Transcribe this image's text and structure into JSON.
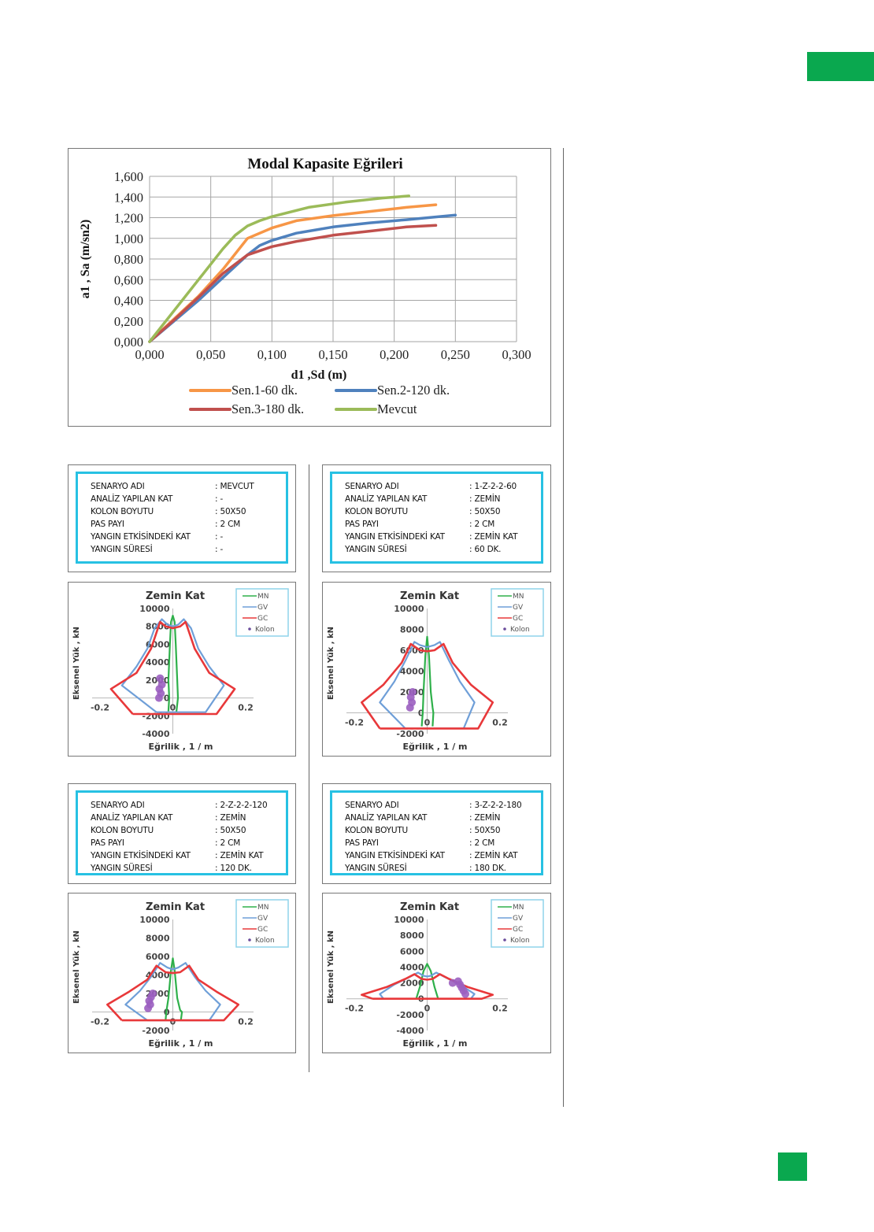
{
  "page": {
    "accent_color": "#0aa84f"
  },
  "chart_data": [
    {
      "type": "line",
      "title": "Modal Kapasite Eğrileri",
      "xlabel": "d1 ,Sd  (m)",
      "ylabel": "a1 , Sa (m/sn2)",
      "xlim": [
        0,
        0.3
      ],
      "ylim": [
        0,
        1.6
      ],
      "xticks": [
        "0,000",
        "0,050",
        "0,100",
        "0,150",
        "0,200",
        "0,250",
        "0,300"
      ],
      "yticks": [
        "0,000",
        "0,200",
        "0,400",
        "0,600",
        "0,800",
        "1,000",
        "1,200",
        "1,400",
        "1,600"
      ],
      "grid": true,
      "legend_position": "bottom",
      "series": [
        {
          "name": "Sen.1-60 dk.",
          "color": "#f79646",
          "x": [
            0,
            0.02,
            0.04,
            0.06,
            0.08,
            0.1,
            0.12,
            0.15,
            0.18,
            0.21,
            0.234
          ],
          "y": [
            0,
            0.22,
            0.44,
            0.7,
            1.0,
            1.1,
            1.17,
            1.22,
            1.26,
            1.3,
            1.325
          ]
        },
        {
          "name": "Sen.2-120 dk.",
          "color": "#4f81bd",
          "x": [
            0,
            0.02,
            0.04,
            0.06,
            0.08,
            0.09,
            0.1,
            0.12,
            0.15,
            0.18,
            0.21,
            0.25
          ],
          "y": [
            0,
            0.2,
            0.4,
            0.62,
            0.84,
            0.93,
            0.98,
            1.05,
            1.11,
            1.15,
            1.18,
            1.225
          ]
        },
        {
          "name": "Sen.3-180 dk.",
          "color": "#c0504d",
          "x": [
            0,
            0.02,
            0.04,
            0.06,
            0.08,
            0.1,
            0.12,
            0.15,
            0.18,
            0.21,
            0.234
          ],
          "y": [
            0,
            0.21,
            0.43,
            0.66,
            0.84,
            0.92,
            0.97,
            1.03,
            1.07,
            1.11,
            1.125
          ]
        },
        {
          "name": "Mevcut",
          "color": "#9bbb59",
          "x": [
            0,
            0.02,
            0.04,
            0.06,
            0.07,
            0.08,
            0.09,
            0.1,
            0.13,
            0.16,
            0.19,
            0.212
          ],
          "y": [
            0,
            0.3,
            0.6,
            0.9,
            1.03,
            1.12,
            1.17,
            1.21,
            1.3,
            1.35,
            1.39,
            1.41
          ]
        }
      ]
    },
    {
      "type": "line",
      "id": "mn-mevcut",
      "title": "Zemin Kat",
      "xlabel": "Eğrilik , 1 / m",
      "ylabel": "Eksenel Yük , kN",
      "xlim": [
        -0.2,
        0.2
      ],
      "ylim": [
        -4000,
        10000
      ],
      "xticks": [
        "-0.2",
        "0",
        "0.2"
      ],
      "yticks": [
        "-4000",
        "-2000",
        "0",
        "2000",
        "4000",
        "6000",
        "8000",
        "10000"
      ],
      "legend": [
        "MN",
        "GV",
        "GC",
        "Kolon"
      ],
      "legend_position": "top-right",
      "series": [
        {
          "name": "MN",
          "color": "#2eb04a",
          "x": [
            -0.012,
            -0.01,
            -0.012,
            -0.008,
            -0.005,
            0,
            0.005,
            0.008,
            0.012,
            0.014,
            0.01,
            0.012
          ],
          "y": [
            -1500,
            0,
            2000,
            6000,
            8500,
            9200,
            8500,
            6000,
            2000,
            0,
            -1500,
            -1500
          ]
        },
        {
          "name": "GV",
          "color": "#6f9fd8",
          "x": [
            -0.045,
            -0.14,
            -0.1,
            -0.07,
            -0.05,
            -0.03,
            -0.015,
            0,
            0.015,
            0.03,
            0.05,
            0.07,
            0.1,
            0.14,
            0.09,
            -0.045
          ],
          "y": [
            -1600,
            1400,
            3500,
            5500,
            7800,
            8800,
            8200,
            8000,
            8200,
            8800,
            7800,
            5500,
            3500,
            1400,
            -1600,
            -1600
          ]
        },
        {
          "name": "GC",
          "color": "#e8383a",
          "x": [
            -0.11,
            -0.17,
            -0.1,
            -0.06,
            -0.035,
            -0.02,
            0,
            0.02,
            0.035,
            0.06,
            0.1,
            0.17,
            0.12,
            -0.11
          ],
          "y": [
            -1800,
            1000,
            2800,
            5500,
            8500,
            8000,
            7800,
            8000,
            8500,
            5500,
            2800,
            1000,
            -1800,
            -1800
          ]
        }
      ],
      "kolon_points": {
        "x": [
          -0.035,
          -0.03,
          -0.037,
          -0.033,
          -0.038
        ],
        "y": [
          2200,
          1500,
          1000,
          500,
          0
        ]
      }
    },
    {
      "type": "line",
      "id": "mn-60",
      "title": "Zemin Kat",
      "xlabel": "Eğrilik , 1 / m",
      "ylabel": "Eksenel Yük , kN",
      "xlim": [
        -0.2,
        0.2
      ],
      "ylim": [
        -2000,
        10000
      ],
      "xticks": [
        "-0.2",
        "0",
        "0.2"
      ],
      "yticks": [
        "-2000",
        "0",
        "2000",
        "4000",
        "6000",
        "8000",
        "10000"
      ],
      "legend": [
        "MN",
        "GV",
        "GC",
        "Kolon"
      ],
      "legend_position": "top-right",
      "series": [
        {
          "name": "MN",
          "color": "#2eb04a",
          "x": [
            -0.015,
            -0.012,
            -0.01,
            -0.005,
            0,
            0.005,
            0.01,
            0.015,
            0.017,
            0.015
          ],
          "y": [
            -1300,
            0,
            2000,
            5500,
            7300,
            5500,
            2000,
            500,
            0,
            -1300
          ]
        },
        {
          "name": "GV",
          "color": "#6f9fd8",
          "x": [
            -0.06,
            -0.13,
            -0.09,
            -0.06,
            -0.035,
            -0.02,
            0,
            0.02,
            0.035,
            0.06,
            0.09,
            0.13,
            0.1,
            -0.06
          ],
          "y": [
            -1500,
            1000,
            3000,
            5000,
            6800,
            6500,
            6300,
            6500,
            6800,
            5000,
            3000,
            1000,
            -1500,
            -1500
          ]
        },
        {
          "name": "GC",
          "color": "#e8383a",
          "x": [
            -0.13,
            -0.18,
            -0.12,
            -0.07,
            -0.045,
            -0.02,
            0,
            0.02,
            0.045,
            0.07,
            0.12,
            0.18,
            0.14,
            -0.13
          ],
          "y": [
            -1500,
            1000,
            2700,
            4800,
            6600,
            6000,
            5900,
            6000,
            6600,
            4800,
            2700,
            1000,
            -1500,
            -1500
          ]
        }
      ],
      "kolon_points": {
        "x": [
          -0.04,
          -0.045,
          -0.042,
          -0.047
        ],
        "y": [
          2000,
          1500,
          1000,
          500
        ]
      }
    },
    {
      "type": "line",
      "id": "mn-120",
      "title": "Zemin Kat",
      "xlabel": "Eğrilik , 1 / m",
      "ylabel": "Eksenel Yük , kN",
      "xlim": [
        -0.2,
        0.2
      ],
      "ylim": [
        -2000,
        10000
      ],
      "xticks": [
        "-0.2",
        "0",
        "0.2"
      ],
      "yticks": [
        "-2000",
        "0",
        "2000",
        "4000",
        "6000",
        "8000",
        "10000"
      ],
      "legend": [
        "MN",
        "GV",
        "GC",
        "Kolon"
      ],
      "legend_position": "top-right",
      "series": [
        {
          "name": "MN",
          "color": "#2eb04a",
          "x": [
            -0.02,
            -0.018,
            -0.012,
            -0.005,
            0,
            0.005,
            0.012,
            0.02,
            0.025,
            0.022
          ],
          "y": [
            -900,
            0,
            1500,
            4500,
            5800,
            4500,
            1500,
            200,
            0,
            -900
          ]
        },
        {
          "name": "GV",
          "color": "#6f9fd8",
          "x": [
            -0.07,
            -0.13,
            -0.09,
            -0.06,
            -0.035,
            -0.015,
            0,
            0.015,
            0.035,
            0.06,
            0.09,
            0.13,
            0.1,
            -0.07
          ],
          "y": [
            -900,
            800,
            2300,
            3800,
            5300,
            4800,
            4600,
            4800,
            5300,
            3800,
            2300,
            800,
            -900,
            -900
          ]
        },
        {
          "name": "GC",
          "color": "#e8383a",
          "x": [
            -0.14,
            -0.18,
            -0.12,
            -0.07,
            -0.045,
            -0.02,
            0,
            0.02,
            0.045,
            0.07,
            0.12,
            0.18,
            0.14,
            -0.14
          ],
          "y": [
            -900,
            800,
            2200,
            3500,
            5000,
            4300,
            4200,
            4300,
            5000,
            3500,
            2200,
            800,
            -900,
            -900
          ]
        }
      ],
      "kolon_points": {
        "x": [
          -0.055,
          -0.06,
          -0.065,
          -0.062,
          -0.068
        ],
        "y": [
          2000,
          1600,
          1200,
          800,
          400
        ]
      }
    },
    {
      "type": "line",
      "id": "mn-180",
      "title": "Zemin Kat",
      "xlabel": "Eğrilik , 1 / m",
      "ylabel": "Eksenel Yük , kN",
      "xlim": [
        -0.2,
        0.2
      ],
      "ylim": [
        -4000,
        10000
      ],
      "xticks": [
        "-0.2",
        "0",
        "0.2"
      ],
      "yticks": [
        "-4000",
        "-2000",
        "0",
        "2000",
        "4000",
        "6000",
        "8000",
        "10000"
      ],
      "legend": [
        "MN",
        "GV",
        "GC",
        "Kolon"
      ],
      "legend_position": "top-right",
      "series": [
        {
          "name": "MN",
          "color": "#2eb04a",
          "x": [
            -0.03,
            -0.02,
            -0.01,
            0,
            0.01,
            0.02,
            0.03
          ],
          "y": [
            0,
            1500,
            3500,
            4400,
            3500,
            1500,
            0
          ]
        },
        {
          "name": "GV",
          "color": "#6f9fd8",
          "x": [
            -0.12,
            -0.13,
            -0.09,
            -0.05,
            -0.025,
            -0.01,
            0,
            0.01,
            0.025,
            0.05,
            0.09,
            0.13,
            0.12,
            -0.12
          ],
          "y": [
            0,
            600,
            1800,
            2700,
            3300,
            2900,
            2800,
            2900,
            3300,
            2700,
            1800,
            600,
            0,
            0
          ]
        },
        {
          "name": "GC",
          "color": "#e8383a",
          "x": [
            -0.15,
            -0.18,
            -0.11,
            -0.06,
            -0.035,
            -0.015,
            0,
            0.015,
            0.035,
            0.06,
            0.11,
            0.18,
            0.15,
            -0.15
          ],
          "y": [
            0,
            500,
            1500,
            2500,
            3100,
            2500,
            2400,
            2500,
            3100,
            2500,
            1500,
            500,
            0,
            0
          ]
        }
      ],
      "kolon_points": {
        "x": [
          0.07,
          0.085,
          0.09,
          0.095,
          0.1,
          0.105
        ],
        "y": [
          2000,
          2200,
          1800,
          1400,
          1000,
          600
        ]
      }
    }
  ],
  "scenarios": [
    {
      "rows": [
        {
          "key": "SENARYO ADI",
          "value": ": MEVCUT"
        },
        {
          "key": "ANALİZ YAPILAN KAT",
          "value": ": -"
        },
        {
          "key": "KOLON BOYUTU",
          "value": ": 50X50"
        },
        {
          "key": "PAS PAYI",
          "value": ": 2 CM"
        },
        {
          "key": "YANGIN ETKİSİNDEKİ KAT",
          "value": ": -"
        },
        {
          "key": "YANGIN SÜRESİ",
          "value": ": -"
        }
      ]
    },
    {
      "rows": [
        {
          "key": "SENARYO ADI",
          "value": ": 1-Z-2-2-60"
        },
        {
          "key": "ANALİZ YAPILAN KAT",
          "value": ": ZEMİN"
        },
        {
          "key": "KOLON BOYUTU",
          "value": ": 50X50"
        },
        {
          "key": "PAS PAYI",
          "value": ": 2 CM"
        },
        {
          "key": "YANGIN ETKİSİNDEKİ KAT",
          "value": ": ZEMİN KAT"
        },
        {
          "key": "YANGIN SÜRESİ",
          "value": ": 60 DK."
        }
      ]
    },
    {
      "rows": [
        {
          "key": "SENARYO ADI",
          "value": ": 2-Z-2-2-120"
        },
        {
          "key": "ANALİZ YAPILAN KAT",
          "value": ": ZEMİN"
        },
        {
          "key": "KOLON BOYUTU",
          "value": ": 50X50"
        },
        {
          "key": "PAS PAYI",
          "value": ": 2 CM"
        },
        {
          "key": "YANGIN ETKİSİNDEKİ KAT",
          "value": ": ZEMİN KAT"
        },
        {
          "key": "YANGIN SÜRESİ",
          "value": ": 120 DK."
        }
      ]
    },
    {
      "rows": [
        {
          "key": "SENARYO ADI",
          "value": ": 3-Z-2-2-180"
        },
        {
          "key": "ANALİZ YAPILAN KAT",
          "value": ": ZEMİN"
        },
        {
          "key": "KOLON BOYUTU",
          "value": ": 50X50"
        },
        {
          "key": "PAS PAYI",
          "value": ": 2 CM"
        },
        {
          "key": "YANGIN ETKİSİNDEKİ KAT",
          "value": ": ZEMİN KAT"
        },
        {
          "key": "YANGIN SÜRESİ",
          "value": ": 180 DK."
        }
      ]
    }
  ]
}
